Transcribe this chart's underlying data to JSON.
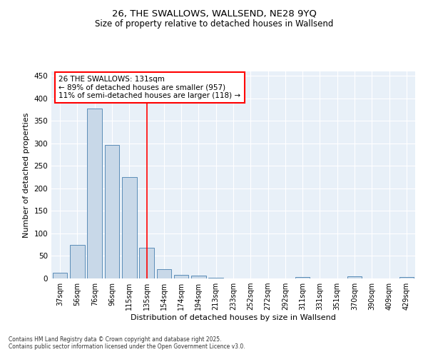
{
  "title1": "26, THE SWALLOWS, WALLSEND, NE28 9YQ",
  "title2": "Size of property relative to detached houses in Wallsend",
  "xlabel": "Distribution of detached houses by size in Wallsend",
  "ylabel": "Number of detached properties",
  "categories": [
    "37sqm",
    "56sqm",
    "76sqm",
    "96sqm",
    "115sqm",
    "135sqm",
    "154sqm",
    "174sqm",
    "194sqm",
    "213sqm",
    "233sqm",
    "252sqm",
    "272sqm",
    "292sqm",
    "311sqm",
    "331sqm",
    "351sqm",
    "370sqm",
    "390sqm",
    "409sqm",
    "429sqm"
  ],
  "values": [
    13,
    75,
    378,
    297,
    225,
    68,
    21,
    8,
    6,
    2,
    0,
    0,
    0,
    0,
    3,
    0,
    0,
    4,
    0,
    0,
    3
  ],
  "bar_color": "#c8d8e8",
  "bar_edge_color": "#5b8db8",
  "vline_x": 5.0,
  "vline_color": "red",
  "annotation_text": "26 THE SWALLOWS: 131sqm\n← 89% of detached houses are smaller (957)\n11% of semi-detached houses are larger (118) →",
  "annotation_box_color": "white",
  "annotation_box_edge": "red",
  "ylim": [
    0,
    460
  ],
  "yticks": [
    0,
    50,
    100,
    150,
    200,
    250,
    300,
    350,
    400,
    450
  ],
  "bg_color": "#e8f0f8",
  "footnote": "Contains HM Land Registry data © Crown copyright and database right 2025.\nContains public sector information licensed under the Open Government Licence v3.0."
}
